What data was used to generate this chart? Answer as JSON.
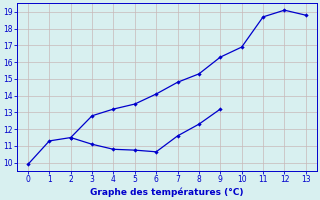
{
  "line1_x": [
    0,
    1,
    2,
    3,
    4,
    5,
    6,
    7,
    8,
    9,
    10,
    11,
    12,
    13
  ],
  "line1_y": [
    9.9,
    11.3,
    11.5,
    12.8,
    13.2,
    13.5,
    14.1,
    14.8,
    15.3,
    16.3,
    16.9,
    18.7,
    19.1,
    18.8
  ],
  "line2_x": [
    2,
    3,
    4,
    5,
    6,
    7,
    8,
    9
  ],
  "line2_y": [
    11.5,
    11.1,
    10.8,
    10.75,
    10.65,
    11.6,
    12.3,
    13.2
  ],
  "line_color": "#0000cc",
  "marker": "D",
  "markersize": 2.2,
  "bg_color": "#d8f0f0",
  "grid_color": "#c8b8b8",
  "xlabel": "Graphe des températures (°C)",
  "xlabel_color": "#0000cc",
  "tick_color": "#0000cc",
  "ylabel_ticks": [
    10,
    11,
    12,
    13,
    14,
    15,
    16,
    17,
    18,
    19
  ],
  "xlim": [
    -0.5,
    13.5
  ],
  "ylim": [
    9.5,
    19.5
  ]
}
